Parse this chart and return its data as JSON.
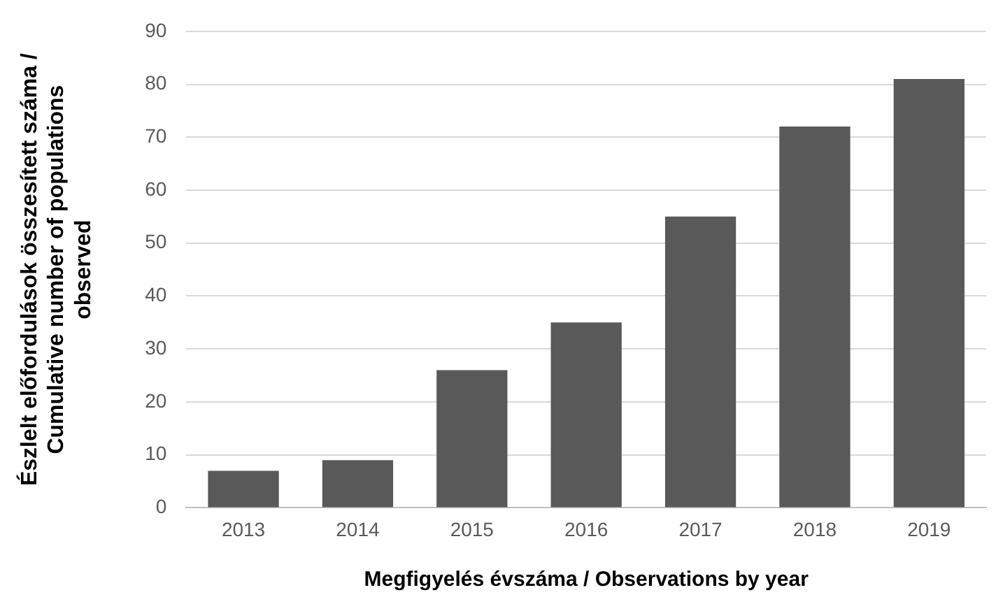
{
  "chart_data": {
    "type": "bar",
    "xlabel": "Megfigyelés évszáma / Observations by year",
    "ylabel": "Észlelt előfordulások összesített száma / Cumulative number of populations observed",
    "categories": [
      "2013",
      "2014",
      "2015",
      "2016",
      "2017",
      "2018",
      "2019"
    ],
    "values": [
      7,
      9,
      26,
      35,
      55,
      72,
      81
    ],
    "color": "#595959",
    "ylim": [
      0,
      90
    ],
    "yticks": [
      0,
      10,
      20,
      30,
      40,
      50,
      60,
      70,
      80,
      90
    ],
    "grid": "y",
    "legend": false
  }
}
